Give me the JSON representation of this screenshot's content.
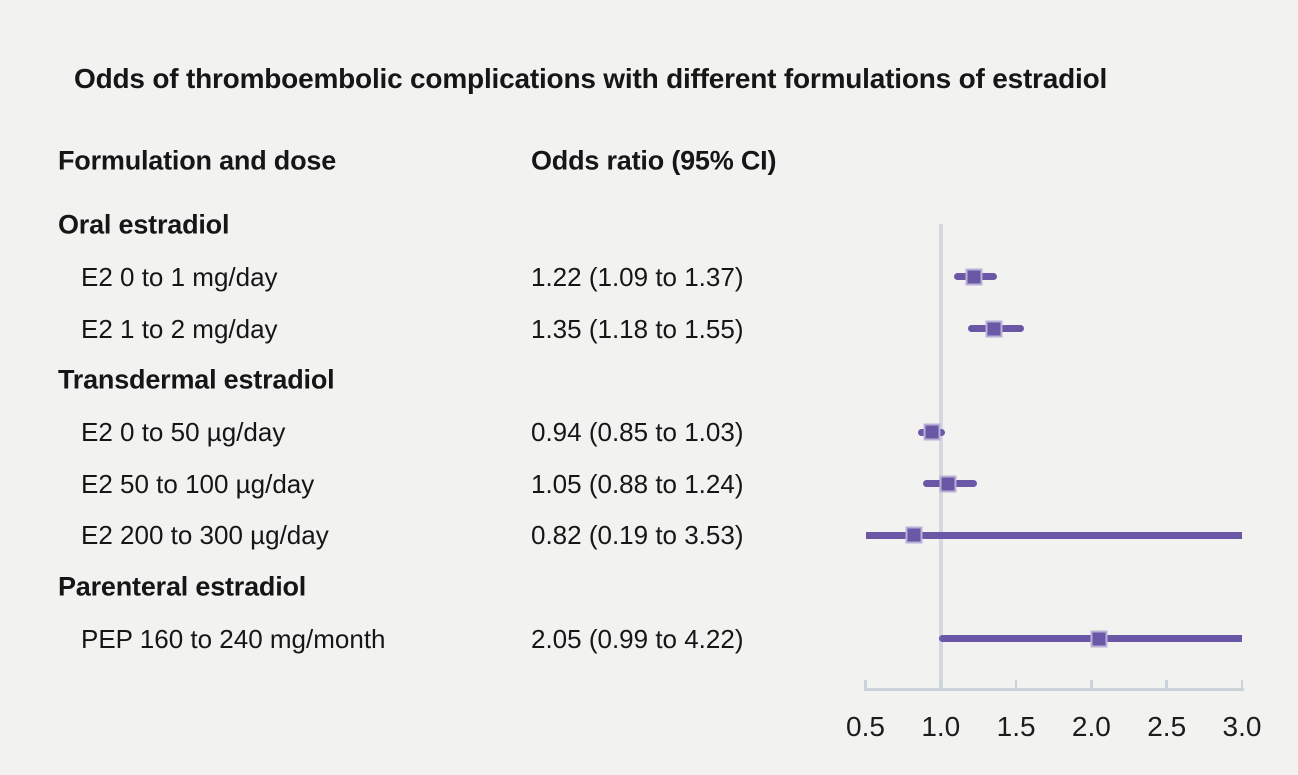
{
  "title": "Odds of thromboembolic complications with different formulations of estradiol",
  "columns": {
    "formulation": "Formulation and dose",
    "odds_ratio": "Odds ratio (95% CI)"
  },
  "colors": {
    "background": "#f2f2f1",
    "text": "#161616",
    "purple": "#6a58a6",
    "marker_edge": "#b9b0d8",
    "axis": "#ccd2da",
    "reference_line": "#d5d8e0"
  },
  "chart_data": {
    "type": "scatter",
    "subtype": "forest-plot",
    "title": "Odds of thromboembolic complications with different formulations of estradiol",
    "xlabel": "Odds ratio (95% CI)",
    "xlim": [
      0.5,
      3.0
    ],
    "x_ticks": [
      "0.5",
      "1.0",
      "1.5",
      "2.0",
      "2.5",
      "3.0"
    ],
    "reference_line": 1.0,
    "grid": false,
    "legend": "none",
    "groups": [
      {
        "label": "Oral estradiol",
        "items": [
          {
            "label": "E2 0 to 1 mg/day",
            "or": 1.22,
            "ci_low": 1.09,
            "ci_high": 1.37,
            "display": "1.22 (1.09 to 1.37)"
          },
          {
            "label": "E2 1 to 2 mg/day",
            "or": 1.35,
            "ci_low": 1.18,
            "ci_high": 1.55,
            "display": "1.35 (1.18 to 1.55)"
          }
        ]
      },
      {
        "label": "Transdermal estradiol",
        "items": [
          {
            "label": "E2 0 to 50 µg/day",
            "or": 0.94,
            "ci_low": 0.85,
            "ci_high": 1.03,
            "display": "0.94 (0.85 to 1.03)"
          },
          {
            "label": "E2 50 to 100 µg/day",
            "or": 1.05,
            "ci_low": 0.88,
            "ci_high": 1.24,
            "display": "1.05 (0.88 to 1.24)"
          },
          {
            "label": "E2 200 to 300 µg/day",
            "or": 0.82,
            "ci_low": 0.19,
            "ci_high": 3.53,
            "display": "0.82 (0.19 to 3.53)"
          }
        ]
      },
      {
        "label": "Parenteral estradiol",
        "items": [
          {
            "label": "PEP 160 to 240 mg/month",
            "or": 2.05,
            "ci_low": 0.99,
            "ci_high": 4.22,
            "display": "2.05 (0.99 to 4.22)"
          }
        ]
      }
    ]
  }
}
